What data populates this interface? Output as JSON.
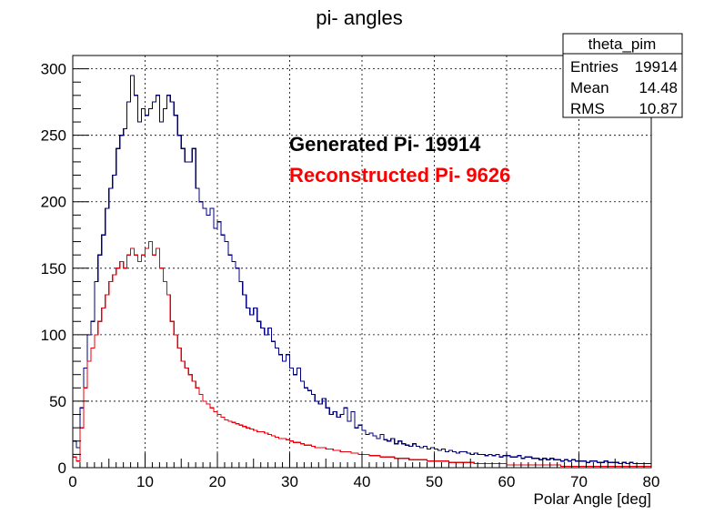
{
  "chart_data": {
    "type": "histogram",
    "title": "pi- angles",
    "xlabel": "Polar Angle [deg]",
    "ylabel": "",
    "xlim": [
      0,
      80
    ],
    "ylim": [
      0,
      310
    ],
    "bin_width": 0.5,
    "x_ticks": [
      0,
      10,
      20,
      30,
      40,
      50,
      60,
      70,
      80
    ],
    "y_ticks": [
      0,
      50,
      100,
      150,
      200,
      250,
      300
    ],
    "grid": true,
    "stats_box": {
      "name": "theta_pim",
      "rows": [
        {
          "label": "Entries",
          "value": "19914"
        },
        {
          "label": "Mean",
          "value": "14.48"
        },
        {
          "label": "RMS",
          "value": "10.87"
        }
      ]
    },
    "annotations": [
      {
        "text": "Generated Pi- 19914",
        "color": "#000000"
      },
      {
        "text": "Reconstructed Pi- 9626",
        "color": "#ff0000"
      }
    ],
    "series": [
      {
        "color": "#00007f",
        "x_start": 0,
        "values": [
          20,
          15,
          45,
          75,
          100,
          110,
          140,
          160,
          175,
          195,
          210,
          220,
          240,
          250,
          255,
          275,
          295,
          280,
          260,
          270,
          265,
          270,
          275,
          280,
          260,
          270,
          280,
          275,
          265,
          250,
          240,
          230,
          230,
          240,
          210,
          200,
          195,
          190,
          195,
          180,
          185,
          175,
          170,
          160,
          155,
          150,
          140,
          130,
          120,
          115,
          120,
          110,
          105,
          100,
          105,
          95,
          90,
          85,
          80,
          85,
          75,
          70,
          75,
          65,
          60,
          58,
          55,
          50,
          48,
          52,
          45,
          40,
          42,
          38,
          40,
          45,
          35,
          42,
          30,
          32,
          28,
          25,
          26,
          24,
          22,
          25,
          21,
          20,
          22,
          18,
          20,
          18,
          17,
          16,
          18,
          16,
          15,
          16,
          14,
          15,
          14,
          13,
          14,
          12,
          13,
          12,
          11,
          12,
          12,
          11,
          10,
          11,
          10,
          10,
          9,
          10,
          9,
          10,
          8,
          9,
          9,
          8,
          8,
          9,
          7,
          8,
          8,
          7,
          7,
          6,
          7,
          6,
          7,
          6,
          6,
          5,
          6,
          5,
          6,
          5,
          5,
          5,
          4,
          5,
          5,
          4,
          4,
          5,
          4,
          4,
          4,
          3,
          4,
          3,
          4,
          3,
          3,
          3,
          3,
          3
        ]
      },
      {
        "color": "#e8000d",
        "x_start": 0,
        "values": [
          8,
          5,
          30,
          60,
          80,
          90,
          100,
          110,
          120,
          130,
          140,
          145,
          150,
          155,
          150,
          160,
          165,
          160,
          155,
          160,
          165,
          170,
          160,
          165,
          150,
          140,
          130,
          110,
          100,
          90,
          80,
          75,
          70,
          65,
          60,
          55,
          50,
          48,
          45,
          42,
          40,
          38,
          36,
          35,
          34,
          33,
          32,
          31,
          30,
          29,
          28,
          27,
          27,
          26,
          25,
          24,
          23,
          22,
          22,
          21,
          20,
          19,
          19,
          18,
          17,
          17,
          16,
          15,
          15,
          15,
          14,
          14,
          13,
          13,
          12,
          12,
          12,
          11,
          11,
          10,
          10,
          10,
          9,
          9,
          9,
          8,
          8,
          8,
          8,
          7,
          7,
          7,
          7,
          6,
          6,
          6,
          6,
          6,
          5,
          5,
          5,
          5,
          5,
          5,
          4,
          4,
          4,
          4,
          4,
          4,
          4,
          3,
          3,
          3,
          3,
          3,
          3,
          3,
          3,
          3,
          2,
          2,
          2,
          2,
          2,
          2,
          2,
          2,
          2,
          2,
          2,
          2,
          2,
          2,
          2,
          1,
          1,
          1,
          1,
          1,
          1,
          1,
          1,
          1,
          1,
          1,
          1,
          1,
          1,
          1,
          1,
          1,
          1,
          1,
          1,
          1,
          1,
          1,
          1,
          1
        ]
      }
    ]
  }
}
